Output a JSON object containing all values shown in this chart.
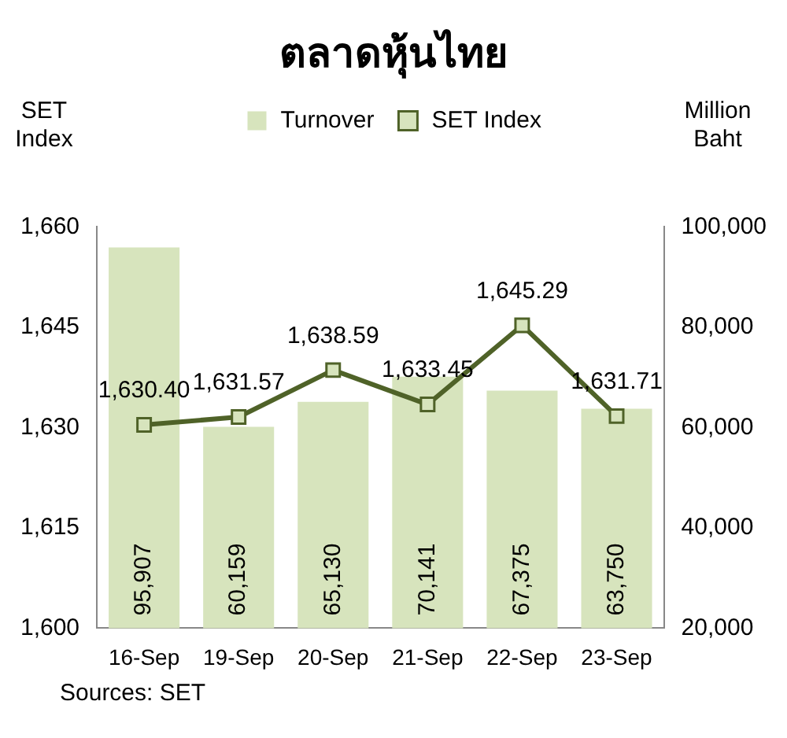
{
  "chart_data": {
    "type": "bar",
    "title": "ตลาดหุ้นไทย",
    "ylabel": "SET Index",
    "y2label": "Million Baht",
    "categories": [
      "16-Sep",
      "19-Sep",
      "20-Sep",
      "21-Sep",
      "22-Sep",
      "23-Sep"
    ],
    "series": [
      {
        "name": "Turnover",
        "type": "bar",
        "axis": "y2",
        "color": "#d7e4bd",
        "values": [
          95907,
          60159,
          65130,
          70141,
          67375,
          63750
        ],
        "value_labels": [
          "95,907",
          "60,159",
          "65,130",
          "70,141",
          "67,375",
          "63,750"
        ]
      },
      {
        "name": "SET Index",
        "type": "line",
        "axis": "y",
        "color": "#4f6228",
        "marker": "square",
        "values": [
          1630.4,
          1631.57,
          1638.59,
          1633.45,
          1645.29,
          1631.71
        ],
        "value_labels": [
          "1,630.40",
          "1,631.57",
          "1,638.59",
          "1,633.45",
          "1,645.29",
          "1,631.71"
        ]
      }
    ],
    "ylim": [
      1600,
      1660
    ],
    "yticks": [
      {
        "value": 1600,
        "label": "1,600"
      },
      {
        "value": 1615,
        "label": "1,615"
      },
      {
        "value": 1630,
        "label": "1,630"
      },
      {
        "value": 1645,
        "label": "1,645"
      },
      {
        "value": 1660,
        "label": "1,660"
      }
    ],
    "y2lim": [
      20000,
      100000
    ],
    "y2ticks": [
      {
        "value": 20000,
        "label": "20,000"
      },
      {
        "value": 40000,
        "label": "40,000"
      },
      {
        "value": 60000,
        "label": "60,000"
      },
      {
        "value": 80000,
        "label": "80,000"
      },
      {
        "value": 100000,
        "label": "100,000"
      }
    ],
    "legend": "top",
    "grid": false,
    "annotations": [
      "Sources: SET"
    ]
  }
}
